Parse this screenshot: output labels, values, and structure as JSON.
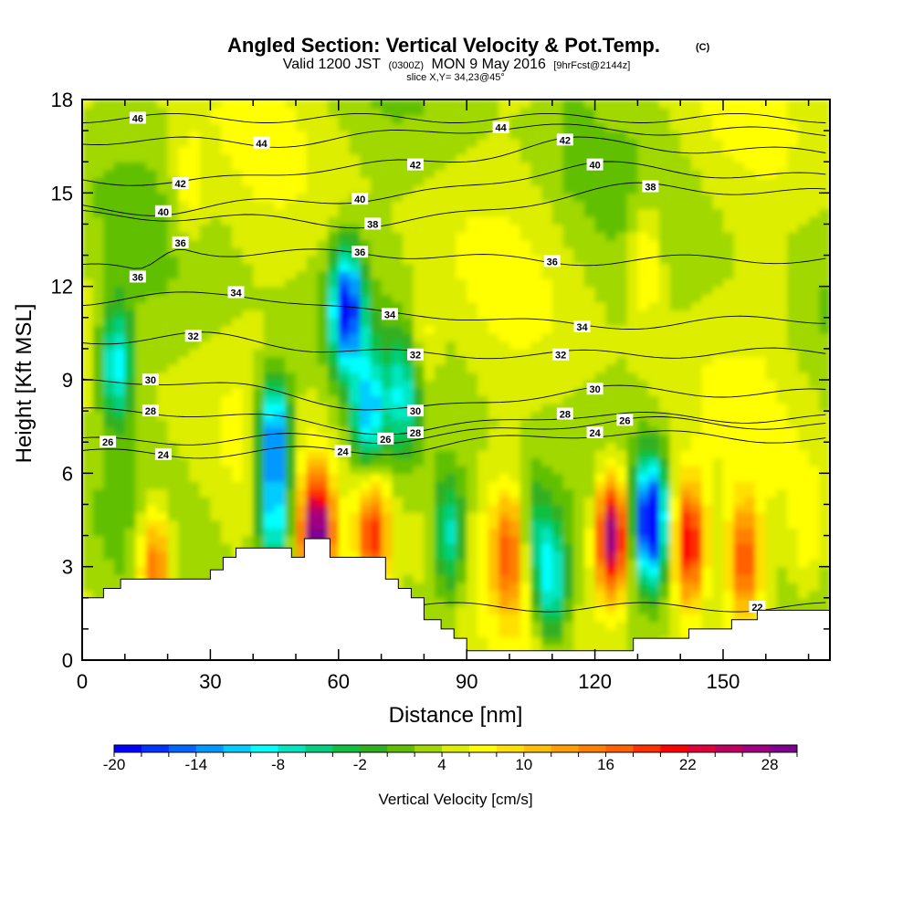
{
  "chart_data": {
    "type": "heatmap",
    "title": "Angled Section: Vertical Velocity & Pot.Temp.",
    "title_suffix": "(C)",
    "subtitle": {
      "valid": "Valid 1200 JST",
      "utc": "(0300Z)",
      "date": "MON 9 May 2016",
      "forecast": "[9hrFcst@2144z]"
    },
    "slice": "slice X,Y= 34,23@45°",
    "xlabel": "Distance [nm]",
    "ylabel": "Height [Kft MSL]",
    "xlim": [
      0,
      175
    ],
    "ylim": [
      0,
      18
    ],
    "xticks": [
      0,
      30,
      60,
      90,
      120,
      150
    ],
    "yticks": [
      0,
      3,
      6,
      9,
      12,
      15,
      18
    ],
    "colorbar": {
      "title": "Vertical Velocity [cm/s]",
      "range": [
        -20,
        30
      ],
      "step": 2,
      "tick_labels": [
        "-20",
        "-14",
        "-8",
        "-2",
        "4",
        "10",
        "16",
        "22",
        "28"
      ],
      "colors": [
        "#0000ff",
        "#0033ff",
        "#0066ff",
        "#0099ff",
        "#00ccff",
        "#00ffff",
        "#00e6c0",
        "#00d080",
        "#10c040",
        "#30b020",
        "#60c000",
        "#a0d800",
        "#ddee00",
        "#ffff00",
        "#ffe000",
        "#ffc000",
        "#ffa000",
        "#ff8000",
        "#ff6000",
        "#ff3000",
        "#ff0000",
        "#e0003a",
        "#c00060",
        "#a00080",
        "#800090"
      ]
    },
    "terrain": [
      [
        0,
        2
      ],
      [
        5,
        2
      ],
      [
        5,
        2.3
      ],
      [
        9,
        2.3
      ],
      [
        9,
        2.6
      ],
      [
        30,
        2.6
      ],
      [
        30,
        2.9
      ],
      [
        33,
        2.9
      ],
      [
        33,
        3.3
      ],
      [
        36,
        3.3
      ],
      [
        36,
        3.6
      ],
      [
        49,
        3.6
      ],
      [
        49,
        3.3
      ],
      [
        52,
        3.3
      ],
      [
        52,
        3.9
      ],
      [
        58,
        3.9
      ],
      [
        58,
        3.3
      ],
      [
        71,
        3.3
      ],
      [
        71,
        2.6
      ],
      [
        74,
        2.6
      ],
      [
        74,
        2.3
      ],
      [
        77,
        2.3
      ],
      [
        77,
        2
      ],
      [
        80,
        2
      ],
      [
        80,
        1.3
      ],
      [
        84,
        1.3
      ],
      [
        84,
        1
      ],
      [
        87,
        1
      ],
      [
        87,
        0.7
      ],
      [
        90,
        0.7
      ],
      [
        90,
        0.3
      ],
      [
        129,
        0.3
      ],
      [
        129,
        0.7
      ],
      [
        142,
        0.7
      ],
      [
        142,
        1
      ],
      [
        152,
        1
      ],
      [
        152,
        1.3
      ],
      [
        158,
        1.3
      ],
      [
        158,
        1.6
      ],
      [
        175,
        1.6
      ],
      [
        175,
        0
      ],
      [
        0,
        0
      ]
    ],
    "velocity_field": {
      "background": 4,
      "features": [
        {
          "x": 62,
          "y": 11.3,
          "value": -18
        },
        {
          "x": 45,
          "y": 7.2,
          "value": -16
        },
        {
          "x": 45,
          "y": 4.6,
          "value": -10
        },
        {
          "x": 133,
          "y": 4.5,
          "value": -20
        },
        {
          "x": 8,
          "y": 9.5,
          "value": -10
        },
        {
          "x": 67,
          "y": 8.0,
          "value": -10
        },
        {
          "x": 75,
          "y": 8.5,
          "value": -6
        },
        {
          "x": 86,
          "y": 4.0,
          "value": -8
        },
        {
          "x": 110,
          "y": 2.5,
          "value": -10
        },
        {
          "x": 106,
          "y": 4.0,
          "value": -4
        },
        {
          "x": 55,
          "y": 4.0,
          "value": 30
        },
        {
          "x": 68,
          "y": 4.0,
          "value": 20
        },
        {
          "x": 17,
          "y": 3.0,
          "value": 18
        },
        {
          "x": 124,
          "y": 4.0,
          "value": 30
        },
        {
          "x": 142,
          "y": 3.8,
          "value": 24
        },
        {
          "x": 155,
          "y": 3.2,
          "value": 18
        },
        {
          "x": 100,
          "y": 3.5,
          "value": 16
        },
        {
          "x": 80,
          "y": 10.0,
          "value": 8
        },
        {
          "x": 25,
          "y": 15.0,
          "value": 8
        },
        {
          "x": 132,
          "y": 13.0,
          "value": 10
        },
        {
          "x": 160,
          "y": 12.0,
          "value": 6
        },
        {
          "x": 115,
          "y": 17.0,
          "value": 2
        },
        {
          "x": 170,
          "y": 4.0,
          "value": 8
        }
      ]
    },
    "contour_labels": [
      {
        "x": 13,
        "y": 17.4,
        "value": "46"
      },
      {
        "x": 42,
        "y": 16.6,
        "value": "44"
      },
      {
        "x": 98,
        "y": 17.1,
        "value": "44"
      },
      {
        "x": 113,
        "y": 16.7,
        "value": "42"
      },
      {
        "x": 23,
        "y": 15.3,
        "value": "42"
      },
      {
        "x": 78,
        "y": 15.9,
        "value": "42"
      },
      {
        "x": 120,
        "y": 15.9,
        "value": "40"
      },
      {
        "x": 19,
        "y": 14.4,
        "value": "40"
      },
      {
        "x": 65,
        "y": 14.8,
        "value": "40"
      },
      {
        "x": 133,
        "y": 15.2,
        "value": "38"
      },
      {
        "x": 68,
        "y": 14.0,
        "value": "38"
      },
      {
        "x": 23,
        "y": 13.4,
        "value": "36"
      },
      {
        "x": 65,
        "y": 13.1,
        "value": "36"
      },
      {
        "x": 110,
        "y": 12.8,
        "value": "36"
      },
      {
        "x": 13,
        "y": 12.3,
        "value": "36"
      },
      {
        "x": 36,
        "y": 11.8,
        "value": "34"
      },
      {
        "x": 72,
        "y": 11.1,
        "value": "34"
      },
      {
        "x": 117,
        "y": 10.7,
        "value": "34"
      },
      {
        "x": 26,
        "y": 10.4,
        "value": "32"
      },
      {
        "x": 78,
        "y": 9.8,
        "value": "32"
      },
      {
        "x": 112,
        "y": 9.8,
        "value": "32"
      },
      {
        "x": 16,
        "y": 9.0,
        "value": "30"
      },
      {
        "x": 120,
        "y": 8.7,
        "value": "30"
      },
      {
        "x": 78,
        "y": 8.0,
        "value": "30"
      },
      {
        "x": 16,
        "y": 8.0,
        "value": "28"
      },
      {
        "x": 113,
        "y": 7.9,
        "value": "28"
      },
      {
        "x": 78,
        "y": 7.3,
        "value": "28"
      },
      {
        "x": 127,
        "y": 7.7,
        "value": "26"
      },
      {
        "x": 6,
        "y": 7.0,
        "value": "26"
      },
      {
        "x": 71,
        "y": 7.1,
        "value": "26"
      },
      {
        "x": 19,
        "y": 6.6,
        "value": "24"
      },
      {
        "x": 61,
        "y": 6.7,
        "value": "24"
      },
      {
        "x": 120,
        "y": 7.3,
        "value": "24"
      },
      {
        "x": 158,
        "y": 1.7,
        "value": "22"
      }
    ]
  }
}
